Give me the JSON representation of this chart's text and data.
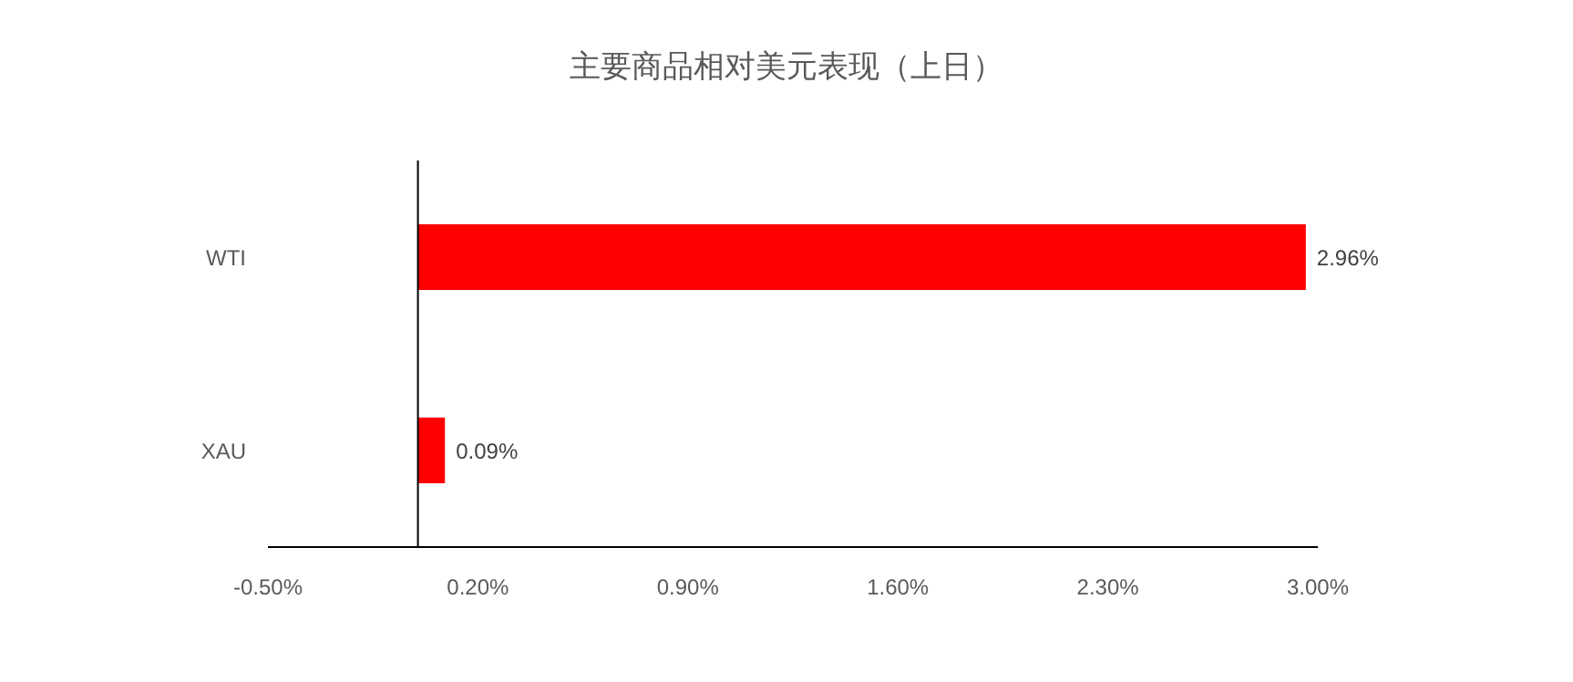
{
  "chart_data": {
    "type": "bar",
    "orientation": "horizontal",
    "title": "主要商品相对美元表现（上日）",
    "categories": [
      "WTI",
      "XAU"
    ],
    "values": [
      2.96,
      0.09
    ],
    "color": "#ff0000",
    "value_labels": [
      "2.96%",
      "0.09%"
    ],
    "xlim": [
      -0.5,
      3.0
    ],
    "xticks": [
      {
        "value": -0.5,
        "label": "-0.50%"
      },
      {
        "value": 0.2,
        "label": "0.20%"
      },
      {
        "value": 0.9,
        "label": "0.90%"
      },
      {
        "value": 1.6,
        "label": "1.60%"
      },
      {
        "value": 2.3,
        "label": "2.30%"
      },
      {
        "value": 3.0,
        "label": "3.00%"
      }
    ]
  }
}
